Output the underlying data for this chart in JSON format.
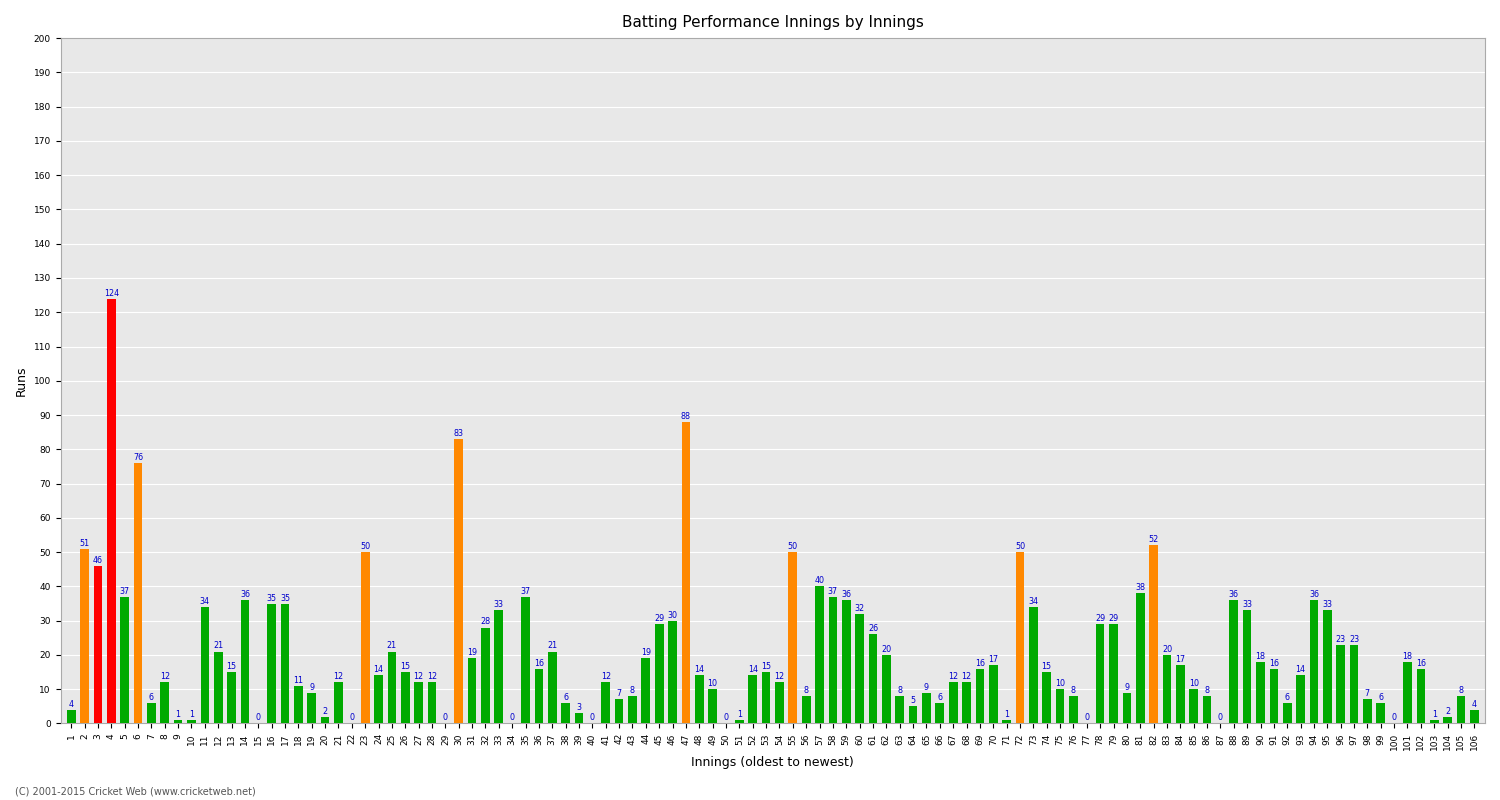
{
  "title": "Batting Performance Innings by Innings",
  "xlabel": "Innings (oldest to newest)",
  "ylabel": "Runs",
  "footnote": "(C) 2001-2015 Cricket Web (www.cricketweb.net)",
  "ylim": [
    0,
    200
  ],
  "yticks": [
    0,
    10,
    20,
    30,
    40,
    50,
    60,
    70,
    80,
    90,
    100,
    110,
    120,
    130,
    140,
    150,
    160,
    170,
    180,
    190,
    200
  ],
  "values": [
    4,
    51,
    46,
    124,
    37,
    76,
    6,
    12,
    1,
    1,
    34,
    21,
    15,
    36,
    0,
    35,
    35,
    11,
    9,
    2,
    12,
    0,
    50,
    14,
    21,
    15,
    12,
    12,
    0,
    83,
    19,
    28,
    33,
    0,
    37,
    16,
    21,
    6,
    3,
    0,
    12,
    7,
    8,
    19,
    29,
    30,
    88,
    14,
    10,
    0,
    1,
    14,
    15,
    12,
    50,
    8,
    40,
    37,
    36,
    32,
    26,
    20,
    8,
    5,
    9,
    6,
    12,
    12,
    16,
    17,
    1,
    50,
    34,
    15,
    10,
    8,
    0,
    29,
    29,
    9,
    38,
    52,
    20,
    17,
    10,
    8,
    0,
    36,
    33,
    18,
    16,
    6,
    14,
    36,
    33,
    23,
    23,
    7,
    6,
    0,
    18,
    16,
    1,
    2,
    8,
    4
  ],
  "colors": [
    "#00aa00",
    "#ff8800",
    "#ff0000",
    "#ff0000",
    "#00aa00",
    "#ff8800",
    "#00aa00",
    "#00aa00",
    "#00aa00",
    "#00aa00",
    "#00aa00",
    "#00aa00",
    "#00aa00",
    "#00aa00",
    "#00aa00",
    "#00aa00",
    "#00aa00",
    "#00aa00",
    "#00aa00",
    "#00aa00",
    "#00aa00",
    "#00aa00",
    "#ff8800",
    "#00aa00",
    "#00aa00",
    "#00aa00",
    "#00aa00",
    "#00aa00",
    "#00aa00",
    "#ff8800",
    "#00aa00",
    "#00aa00",
    "#00aa00",
    "#00aa00",
    "#00aa00",
    "#00aa00",
    "#00aa00",
    "#00aa00",
    "#00aa00",
    "#00aa00",
    "#00aa00",
    "#00aa00",
    "#00aa00",
    "#00aa00",
    "#00aa00",
    "#00aa00",
    "#ff8800",
    "#00aa00",
    "#00aa00",
    "#00aa00",
    "#00aa00",
    "#00aa00",
    "#00aa00",
    "#00aa00",
    "#ff8800",
    "#00aa00",
    "#00aa00",
    "#00aa00",
    "#00aa00",
    "#00aa00",
    "#00aa00",
    "#00aa00",
    "#00aa00",
    "#00aa00",
    "#00aa00",
    "#00aa00",
    "#00aa00",
    "#00aa00",
    "#00aa00",
    "#00aa00",
    "#00aa00",
    "#ff8800",
    "#00aa00",
    "#00aa00",
    "#00aa00",
    "#00aa00",
    "#00aa00",
    "#00aa00",
    "#00aa00",
    "#00aa00",
    "#00aa00",
    "#ff8800",
    "#00aa00",
    "#00aa00",
    "#00aa00",
    "#00aa00",
    "#00aa00",
    "#00aa00",
    "#00aa00",
    "#00aa00",
    "#00aa00",
    "#00aa00",
    "#00aa00",
    "#00aa00",
    "#00aa00",
    "#00aa00",
    "#00aa00",
    "#00aa00",
    "#00aa00",
    "#00aa00",
    "#00aa00",
    "#00aa00",
    "#00aa00",
    "#00aa00",
    "#00aa00",
    "#00aa00"
  ],
  "xtick_labels": [
    "1",
    "2",
    "3",
    "4",
    "5",
    "6",
    "7",
    "8",
    "9",
    "10",
    "11",
    "12",
    "13",
    "14",
    "15",
    "16",
    "17",
    "18",
    "19",
    "20",
    "21",
    "22",
    "23",
    "24",
    "25",
    "26",
    "27",
    "28",
    "29",
    "30",
    "31",
    "32",
    "33",
    "34",
    "35",
    "36",
    "37",
    "38",
    "39",
    "40",
    "41",
    "42",
    "43",
    "44",
    "45",
    "46",
    "47",
    "48",
    "49",
    "50",
    "51",
    "52",
    "53",
    "54",
    "55",
    "56",
    "57",
    "58",
    "59",
    "60",
    "61",
    "62",
    "63",
    "64",
    "65",
    "66",
    "67",
    "68",
    "69",
    "70",
    "71",
    "72",
    "73",
    "74",
    "75",
    "76",
    "77",
    "78",
    "79",
    "80",
    "81",
    "82",
    "83",
    "84",
    "85",
    "86",
    "87",
    "88",
    "89",
    "90",
    "91",
    "92",
    "93",
    "94",
    "95",
    "96",
    "97",
    "98",
    "99",
    "100",
    "101",
    "102",
    "103",
    "104",
    "105",
    "106"
  ],
  "bg_color": "#ffffff",
  "plot_bg_color": "#e8e8e8",
  "grid_color": "#ffffff",
  "bar_width": 0.65,
  "label_fontsize": 5.8,
  "label_color": "#0000cc",
  "title_fontsize": 11,
  "axis_label_fontsize": 9,
  "tick_fontsize": 6.5,
  "figsize": [
    15.0,
    8.0
  ],
  "dpi": 100
}
